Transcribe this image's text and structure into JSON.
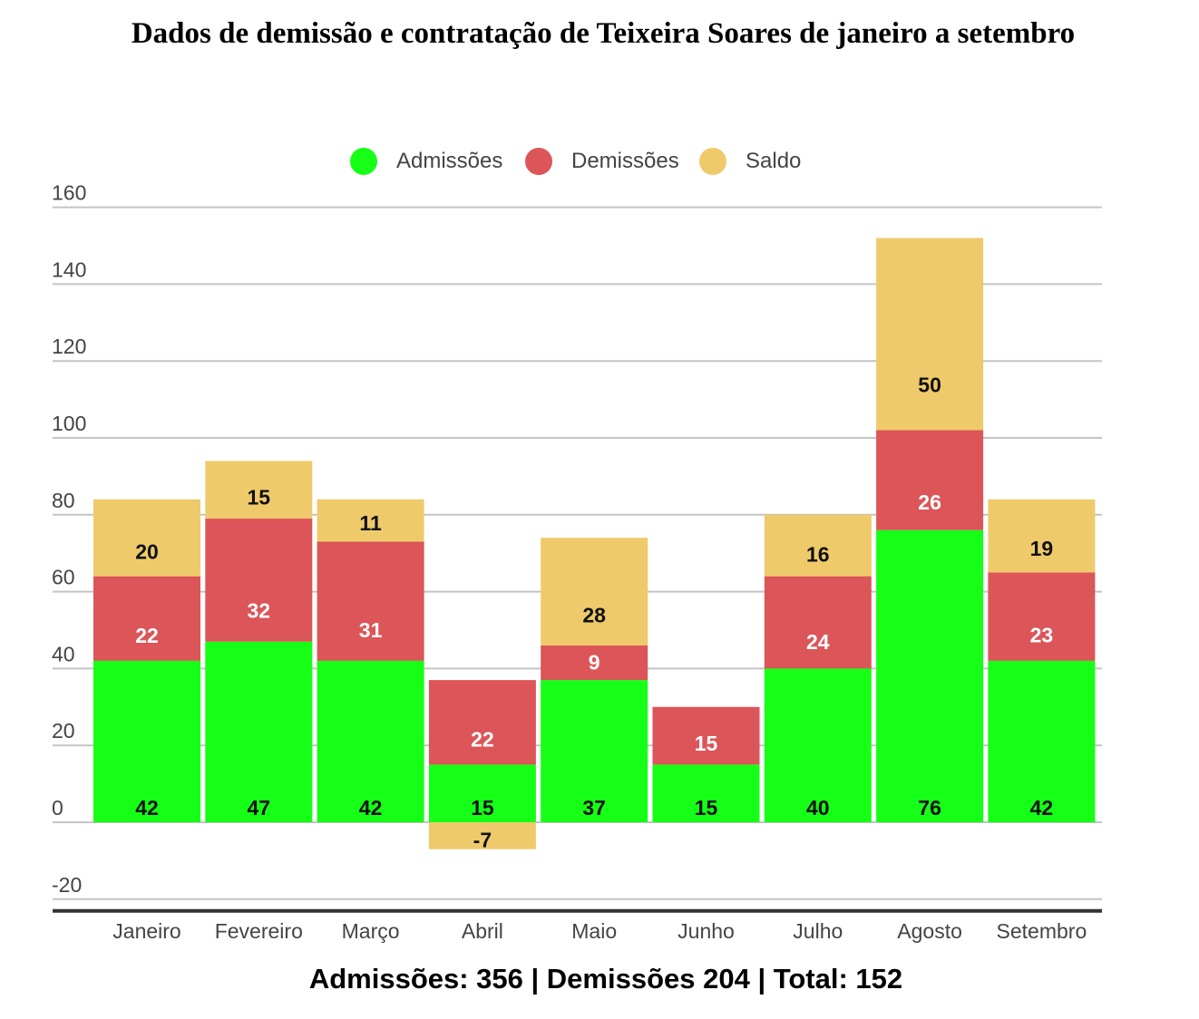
{
  "chart_data": {
    "type": "bar",
    "stacked": true,
    "title": "Dados de demissão e contratação de Teixeira Soares de janeiro a setembro",
    "categories": [
      "Janeiro",
      "Fevereiro",
      "Março",
      "Abril",
      "Maio",
      "Junho",
      "Julho",
      "Agosto",
      "Setembro"
    ],
    "series": [
      {
        "name": "Admissões",
        "color": "#16ff16",
        "label_color": "#111111",
        "values": [
          42,
          47,
          42,
          15,
          37,
          15,
          40,
          76,
          42
        ]
      },
      {
        "name": "Demissões",
        "color": "#dc5558",
        "label_color": "#ffffff",
        "values": [
          22,
          32,
          31,
          22,
          9,
          15,
          24,
          26,
          23
        ]
      },
      {
        "name": "Saldo",
        "color": "#efca6b",
        "label_color": "#111111",
        "values": [
          20,
          15,
          11,
          -7,
          28,
          null,
          16,
          50,
          19
        ]
      }
    ],
    "yticks": [
      -20,
      0,
      20,
      40,
      60,
      80,
      100,
      120,
      140,
      160
    ],
    "ylim": [
      -20,
      160
    ],
    "grid": true,
    "legend_position": "top-center",
    "summary": "Admissões: 356 | Demissões 204 | Total: 152"
  }
}
